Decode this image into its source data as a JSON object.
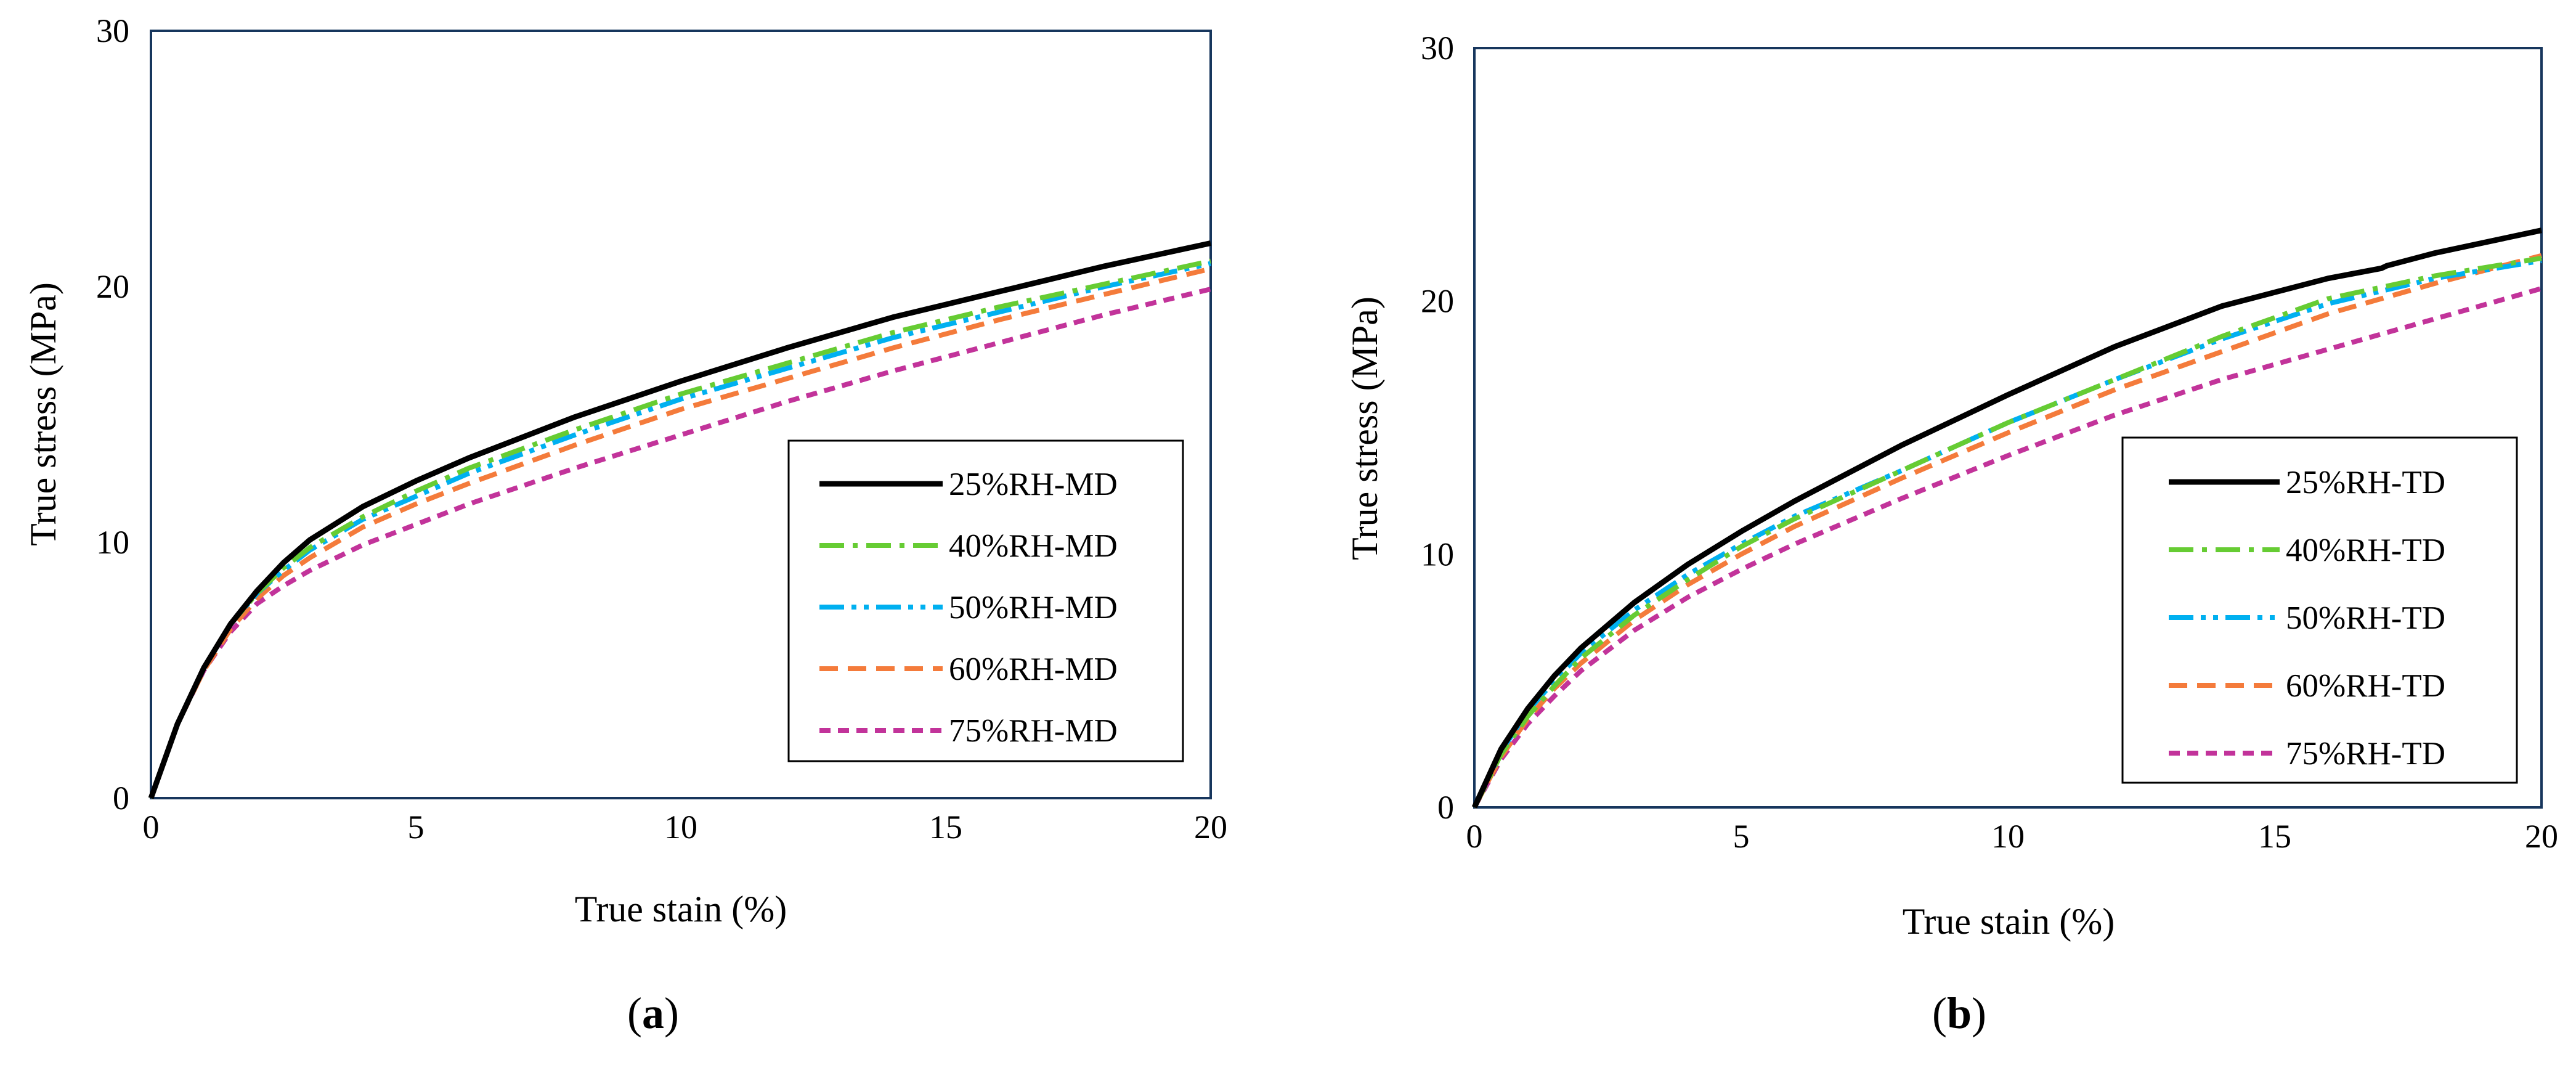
{
  "colors": {
    "25": "#000000",
    "40": "#66cc33",
    "50": "#00b0f0",
    "60": "#f47b3b",
    "75": "#c2339a"
  },
  "chart_data": [
    {
      "type": "line",
      "caption_letter": "a",
      "xlabel": "True stain (%)",
      "ylabel": "True stress (MPa)",
      "xlim": [
        0,
        20
      ],
      "ylim": [
        0,
        30
      ],
      "xticks": [
        0,
        5,
        10,
        15,
        20
      ],
      "yticks": [
        0,
        10,
        20,
        30
      ],
      "legend_position": "center-right",
      "series": [
        {
          "key": "25",
          "name": "25%RH-MD",
          "dash": "solid",
          "x": [
            0,
            0.5,
            1,
            1.5,
            2,
            2.5,
            3,
            4,
            5,
            6,
            8,
            10,
            12,
            14,
            16,
            18,
            20
          ],
          "y": [
            0,
            2.9,
            5.1,
            6.8,
            8.1,
            9.2,
            10.1,
            11.4,
            12.4,
            13.3,
            14.9,
            16.3,
            17.6,
            18.8,
            19.8,
            20.8,
            21.7
          ]
        },
        {
          "key": "40",
          "name": "40%RH-MD",
          "dash": "dashdot",
          "x": [
            0,
            0.5,
            1,
            1.5,
            2,
            2.5,
            3,
            4,
            5,
            6,
            8,
            10,
            12,
            14,
            16,
            18,
            20
          ],
          "y": [
            0,
            2.9,
            5.1,
            6.8,
            8.0,
            9.0,
            9.8,
            11.0,
            12.0,
            12.9,
            14.4,
            15.8,
            17.0,
            18.2,
            19.2,
            20.1,
            21.0
          ]
        },
        {
          "key": "50",
          "name": "50%RH-MD",
          "dash": "dashdotdot",
          "x": [
            0,
            0.5,
            1,
            1.5,
            2,
            2.5,
            3,
            4,
            5,
            6,
            8,
            10,
            12,
            14,
            16,
            18,
            20
          ],
          "y": [
            0,
            2.9,
            5.1,
            6.8,
            8.0,
            8.9,
            9.7,
            10.9,
            11.8,
            12.7,
            14.2,
            15.6,
            16.8,
            18.0,
            19.0,
            20.0,
            20.9
          ]
        },
        {
          "key": "60",
          "name": "60%RH-MD",
          "dash": "dash",
          "x": [
            0,
            0.5,
            1,
            1.5,
            2,
            2.5,
            3,
            4,
            5,
            6,
            8,
            10,
            12,
            14,
            16,
            18,
            20
          ],
          "y": [
            0,
            2.9,
            5.0,
            6.6,
            7.8,
            8.7,
            9.4,
            10.6,
            11.5,
            12.3,
            13.8,
            15.2,
            16.4,
            17.6,
            18.7,
            19.7,
            20.7
          ]
        },
        {
          "key": "75",
          "name": "75%RH-MD",
          "dash": "shortdash",
          "x": [
            0,
            0.5,
            1,
            1.5,
            2,
            2.5,
            3,
            4,
            5,
            6,
            8,
            10,
            12,
            14,
            16,
            18,
            20
          ],
          "y": [
            0,
            2.9,
            5.0,
            6.5,
            7.6,
            8.3,
            8.9,
            9.9,
            10.7,
            11.5,
            12.9,
            14.2,
            15.5,
            16.7,
            17.8,
            18.9,
            19.9
          ]
        }
      ]
    },
    {
      "type": "line",
      "caption_letter": "b",
      "xlabel": "True stain (%)",
      "ylabel": "True stress (MPa)",
      "xlim": [
        0,
        20
      ],
      "ylim": [
        0,
        30
      ],
      "xticks": [
        0,
        5,
        10,
        15,
        20
      ],
      "yticks": [
        0,
        10,
        20,
        30
      ],
      "legend_position": "bottom-right",
      "series": [
        {
          "key": "25",
          "name": "25%RH-TD",
          "dash": "solid",
          "x": [
            0,
            0.5,
            1,
            1.5,
            2,
            3,
            4,
            5,
            6,
            8,
            10,
            12,
            14,
            16,
            17,
            17.1,
            18,
            20
          ],
          "y": [
            0,
            2.3,
            3.9,
            5.2,
            6.3,
            8.1,
            9.6,
            10.9,
            12.1,
            14.3,
            16.3,
            18.2,
            19.8,
            20.9,
            21.3,
            21.4,
            21.9,
            22.8
          ]
        },
        {
          "key": "40",
          "name": "40%RH-TD",
          "dash": "dashdot",
          "x": [
            0,
            0.5,
            1,
            1.5,
            2,
            3,
            4,
            5,
            6,
            8,
            10,
            12,
            14,
            16,
            18,
            20
          ],
          "y": [
            0,
            2.1,
            3.6,
            4.8,
            5.9,
            7.6,
            9.0,
            10.3,
            11.4,
            13.3,
            15.2,
            16.9,
            18.6,
            20.1,
            21.0,
            21.7
          ]
        },
        {
          "key": "50",
          "name": "50%RH-TD",
          "dash": "dashdotdot",
          "x": [
            0,
            0.5,
            1,
            1.5,
            2,
            3,
            4,
            5,
            6,
            8,
            10,
            12,
            14,
            16,
            18,
            20
          ],
          "y": [
            0,
            2.2,
            3.8,
            5.0,
            6.1,
            7.8,
            9.2,
            10.4,
            11.5,
            13.3,
            15.2,
            16.9,
            18.5,
            19.9,
            20.9,
            21.6
          ]
        },
        {
          "key": "60",
          "name": "60%RH-TD",
          "dash": "dash",
          "x": [
            0,
            0.5,
            1,
            1.5,
            2,
            3,
            4,
            5,
            6,
            8,
            10,
            12,
            14,
            16,
            18,
            20
          ],
          "y": [
            0,
            2.0,
            3.5,
            4.7,
            5.7,
            7.4,
            8.8,
            10.0,
            11.1,
            13.0,
            14.8,
            16.5,
            18.0,
            19.5,
            20.7,
            21.8
          ]
        },
        {
          "key": "75",
          "name": "75%RH-TD",
          "dash": "shortdash",
          "x": [
            0,
            0.5,
            1,
            1.5,
            2,
            3,
            4,
            5,
            6,
            8,
            10,
            12,
            14,
            16,
            18,
            20
          ],
          "y": [
            0,
            1.9,
            3.3,
            4.4,
            5.4,
            7.0,
            8.3,
            9.4,
            10.4,
            12.2,
            13.9,
            15.5,
            16.9,
            18.1,
            19.3,
            20.5
          ]
        }
      ]
    }
  ]
}
